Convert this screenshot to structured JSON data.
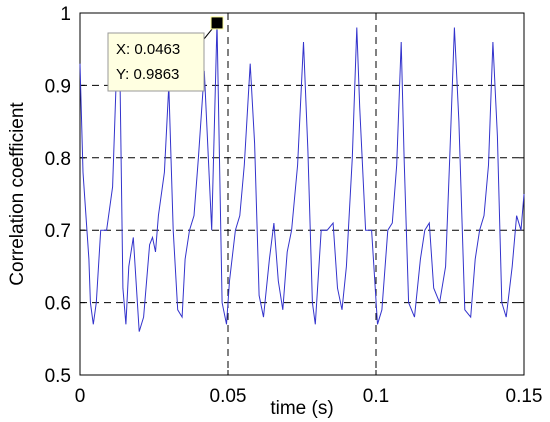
{
  "chart_data": {
    "type": "line",
    "title": "",
    "xlabel": "time (s)",
    "ylabel": "Correlation coefficient",
    "xlim": [
      0,
      0.15
    ],
    "ylim": [
      0.5,
      1.0
    ],
    "x_ticks": [
      0,
      0.05,
      0.1,
      0.15
    ],
    "x_tick_labels": [
      "0",
      "0.05",
      "0.1",
      "0.15"
    ],
    "y_ticks": [
      0.5,
      0.6,
      0.7,
      0.8,
      0.9,
      1.0
    ],
    "y_tick_labels": [
      "0.5",
      "0.6",
      "0.7",
      "0.8",
      "0.9",
      "1"
    ],
    "grid": true,
    "grid_style": "dashed",
    "series": [
      {
        "color": "#3333cc",
        "x": [
          0,
          0.001,
          0.003,
          0.0035,
          0.0045,
          0.0055,
          0.007,
          0.009,
          0.011,
          0.0125,
          0.0135,
          0.0145,
          0.0155,
          0.0165,
          0.018,
          0.02,
          0.0215,
          0.0225,
          0.0235,
          0.0245,
          0.0255,
          0.0265,
          0.0285,
          0.03,
          0.0315,
          0.033,
          0.0345,
          0.0355,
          0.037,
          0.0385,
          0.04,
          0.042,
          0.0445,
          0.0463,
          0.048,
          0.0495,
          0.0505,
          0.0525,
          0.054,
          0.0555,
          0.0575,
          0.059,
          0.0605,
          0.062,
          0.064,
          0.0655,
          0.067,
          0.0685,
          0.07,
          0.0715,
          0.0735,
          0.0755,
          0.077,
          0.0785,
          0.0795,
          0.0815,
          0.0835,
          0.0855,
          0.087,
          0.0885,
          0.09,
          0.092,
          0.0935,
          0.0945,
          0.0965,
          0.0985,
          0.1005,
          0.102,
          0.104,
          0.1055,
          0.107,
          0.1085,
          0.1095,
          0.111,
          0.113,
          0.115,
          0.1165,
          0.118,
          0.1195,
          0.1215,
          0.1235,
          0.125,
          0.1265,
          0.128,
          0.13,
          0.132,
          0.1335,
          0.135,
          0.1365,
          0.138,
          0.1395,
          0.141,
          0.1425,
          0.144,
          0.146,
          0.1475,
          0.149,
          0.15
        ],
        "y": [
          0.93,
          0.78,
          0.66,
          0.6,
          0.57,
          0.6,
          0.7,
          0.7,
          0.76,
          0.94,
          0.91,
          0.62,
          0.57,
          0.65,
          0.69,
          0.56,
          0.58,
          0.63,
          0.68,
          0.69,
          0.67,
          0.72,
          0.78,
          0.9,
          0.7,
          0.59,
          0.58,
          0.66,
          0.7,
          0.72,
          0.8,
          0.92,
          0.7,
          0.9863,
          0.6,
          0.57,
          0.63,
          0.7,
          0.72,
          0.79,
          0.93,
          0.82,
          0.61,
          0.58,
          0.66,
          0.71,
          0.63,
          0.59,
          0.67,
          0.7,
          0.79,
          0.96,
          0.81,
          0.6,
          0.57,
          0.7,
          0.7,
          0.71,
          0.62,
          0.59,
          0.65,
          0.8,
          0.98,
          0.87,
          0.7,
          0.7,
          0.57,
          0.59,
          0.7,
          0.71,
          0.79,
          0.96,
          0.8,
          0.6,
          0.58,
          0.66,
          0.7,
          0.71,
          0.62,
          0.6,
          0.65,
          0.81,
          0.98,
          0.85,
          0.59,
          0.58,
          0.66,
          0.7,
          0.72,
          0.79,
          0.96,
          0.83,
          0.6,
          0.58,
          0.65,
          0.72,
          0.7,
          0.75
        ]
      }
    ],
    "datatip": {
      "x_text": "X: 0.0463",
      "y_text": "Y: 0.9863",
      "x": 0.0463,
      "y": 0.9863
    }
  }
}
